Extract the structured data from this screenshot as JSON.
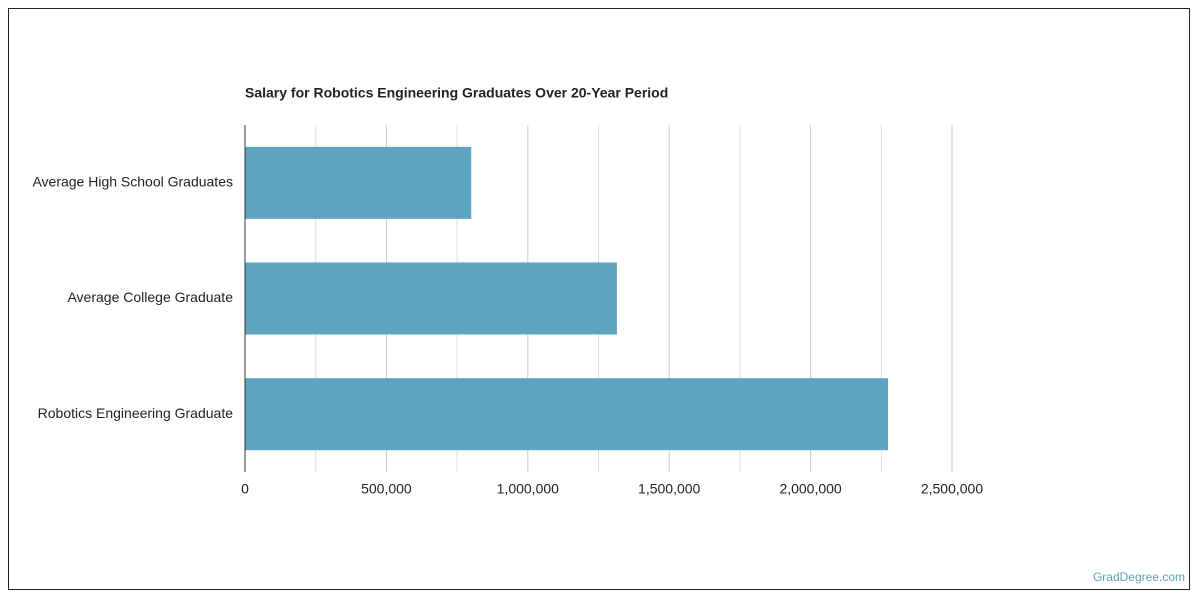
{
  "chart_data": {
    "type": "bar",
    "orientation": "horizontal",
    "title": "Salary for Robotics Engineering Graduates Over 20-Year Period",
    "categories": [
      "Average High School Graduates",
      "Average College Graduate",
      "Robotics Engineering Graduate"
    ],
    "values": [
      800000,
      1315000,
      2274000
    ],
    "color": "#5ea3bf",
    "xlim": [
      0,
      2500000
    ],
    "xticks": [
      0,
      {
        "value": 500000,
        "label": "500,000"
      },
      {
        "value": 1000000,
        "label": "1,000,000"
      },
      {
        "value": 1500000,
        "label": "1,500,000"
      },
      {
        "value": 2000000,
        "label": "2,000,000"
      },
      {
        "value": 2500000,
        "label": "2,500,000"
      }
    ],
    "xminor": [
      250000,
      750000,
      1250000,
      1750000,
      2250000
    ],
    "grid": true,
    "source": "GradDegree.com"
  }
}
